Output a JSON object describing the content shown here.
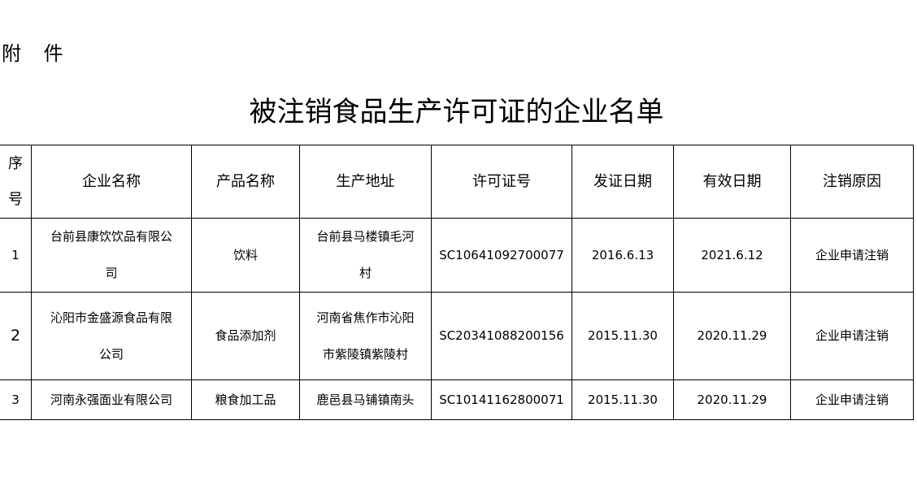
{
  "attachment_label": "附 件",
  "title": "被注销食品生产许可证的企业名单",
  "table": {
    "headers": [
      "序号",
      "企业名称",
      "产品名称",
      "生产地址",
      "许可证号",
      "发证日期",
      "有效日期",
      "注销原因"
    ],
    "rows": [
      [
        "1",
        "台前县康饮饮品有限公司",
        "饮料",
        "台前县马楼镇毛河村",
        "SC10641092700077",
        "2016.6.13",
        "2021.6.12",
        "企业申请注销"
      ],
      [
        "2",
        "沁阳市金盛源食品有限公司",
        "食品添加剂",
        "河南省焦作市沁阳市紫陵镇紫陵村",
        "SC20341088200156",
        "2015.11.30",
        "2020.11.29",
        "企业申请注销"
      ],
      [
        "3",
        "河南永强面业有限公司",
        "粮食加工品",
        "鹿邑县马铺镇南头",
        "SC10141162800071",
        "2015.11.30",
        "2020.11.29",
        "企业申请注销"
      ]
    ]
  }
}
